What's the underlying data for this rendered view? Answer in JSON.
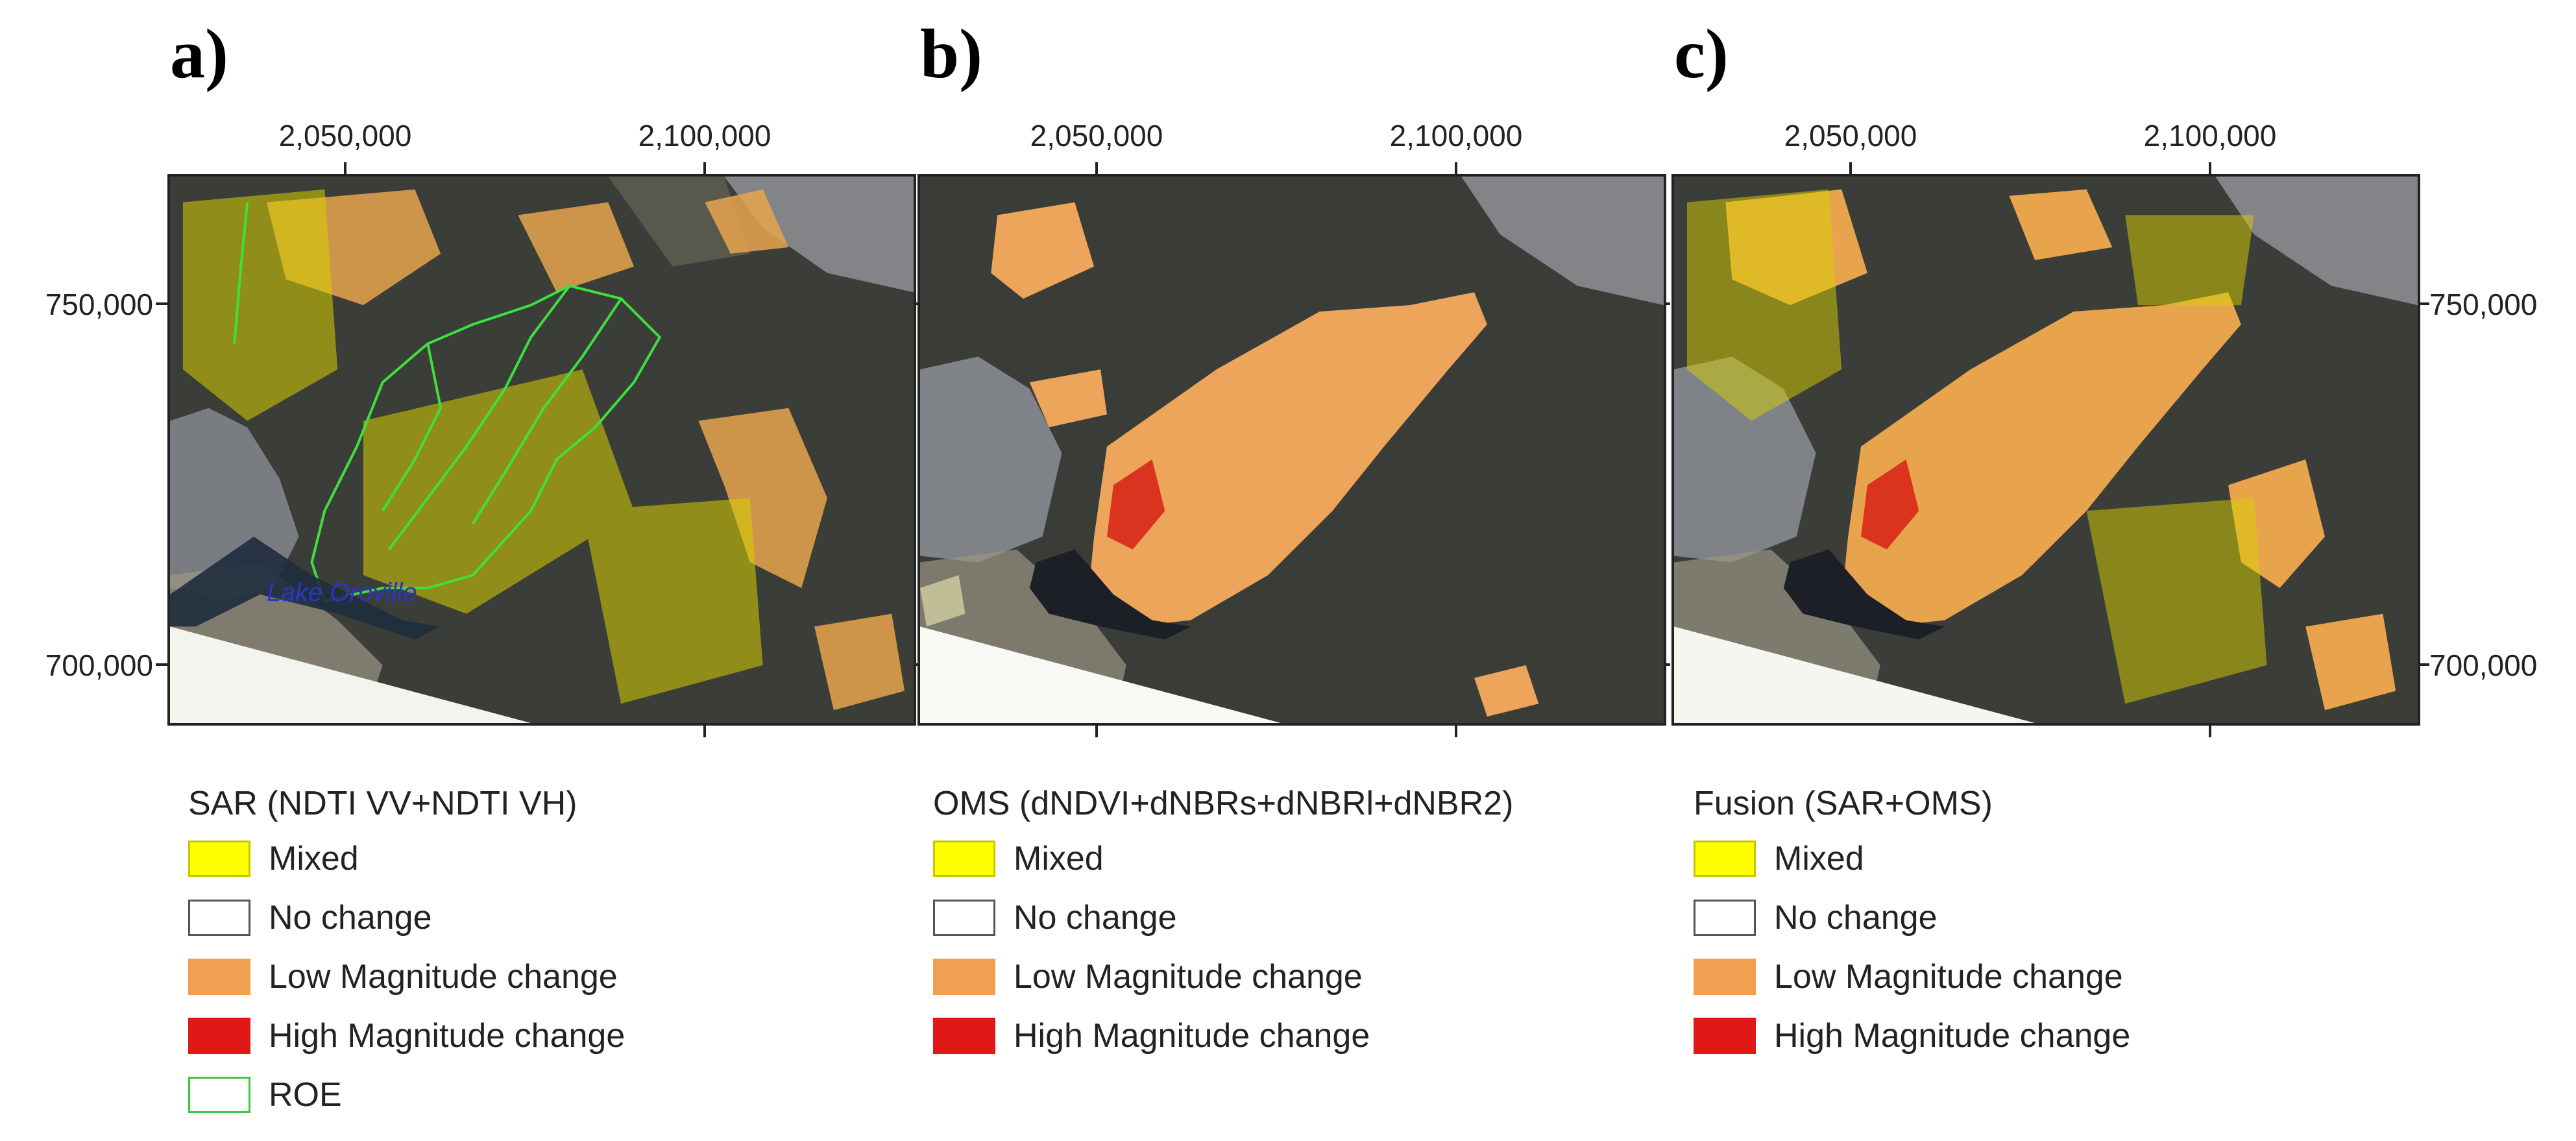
{
  "panels": [
    {
      "letter": "a)",
      "legend_title": "SAR (NDTI VV+NDTI VH)",
      "legend": [
        {
          "label": "Mixed",
          "color": "#ffff00",
          "border": "#c8c800"
        },
        {
          "label": "No change",
          "color": "#ffffff",
          "border": "#555555"
        },
        {
          "label": "Low Magnitude change",
          "color": "#f0a050",
          "border": "#f0a050"
        },
        {
          "label": "High Magnitude change",
          "color": "#e01818",
          "border": "#e01818"
        },
        {
          "label": "ROE",
          "color": "#ffffff",
          "border": "#3ec83e"
        }
      ],
      "map_label": "Lake Oroville"
    },
    {
      "letter": "b)",
      "legend_title": "OMS (dNDVI+dNBRs+dNBRl+dNBR2)",
      "legend": [
        {
          "label": "Mixed",
          "color": "#ffff00",
          "border": "#c8c800"
        },
        {
          "label": "No change",
          "color": "#ffffff",
          "border": "#555555"
        },
        {
          "label": "Low Magnitude change",
          "color": "#f0a050",
          "border": "#f0a050"
        },
        {
          "label": "High Magnitude change",
          "color": "#e01818",
          "border": "#e01818"
        }
      ]
    },
    {
      "letter": "c)",
      "legend_title": "Fusion (SAR+OMS)",
      "legend": [
        {
          "label": "Mixed",
          "color": "#ffff00",
          "border": "#c8c800"
        },
        {
          "label": "No change",
          "color": "#ffffff",
          "border": "#555555"
        },
        {
          "label": "Low Magnitude change",
          "color": "#f0a050",
          "border": "#f0a050"
        },
        {
          "label": "High Magnitude change",
          "color": "#e01818",
          "border": "#e01818"
        }
      ]
    }
  ],
  "x_ticks": [
    "2,050,000",
    "2,100,000"
  ],
  "y_ticks": [
    "750,000",
    "700,000"
  ]
}
